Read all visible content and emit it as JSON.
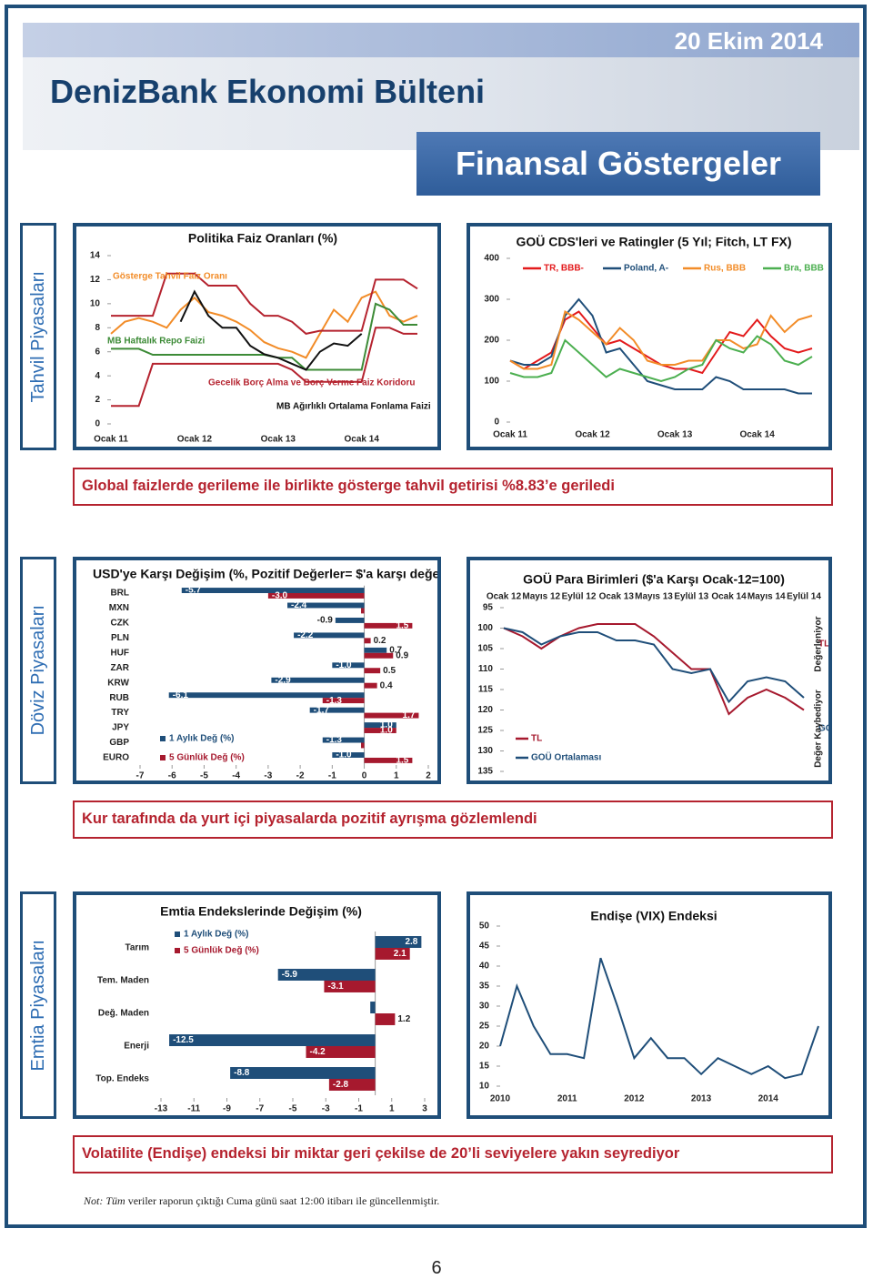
{
  "header": {
    "date": "20 Ekim 2014",
    "title": "DenizBank Ekonomi Bülteni",
    "subtitle": "Finansal Göstergeler"
  },
  "sections": [
    {
      "label": "Tahvil Piyasaları",
      "caption": "Global faizlerde gerileme ile birlikte gösterge tahvil getirisi %8.83’e geriledi"
    },
    {
      "label": "Döviz Piyasaları",
      "caption": "Kur tarafında da yurt içi piyasalarda pozitif ayrışma gözlemlendi"
    },
    {
      "label": "Emtia Piyasaları",
      "caption": "Volatilite (Endişe) endeksi bir miktar geri çekilse de 20’li seviyelere yakın seyrediyor"
    }
  ],
  "note_lead": "Not: Tüm",
  "note": "veriler raporun çıktığı Cuma günü saat 12:00 itibarı ile güncellenmiştir.",
  "page_number": "6",
  "chart_data": [
    {
      "type": "line",
      "title": "Politika Faiz Oranları (%)",
      "categories": [
        "Ocak 11",
        null,
        null,
        null,
        null,
        null,
        "Ocak 12",
        null,
        null,
        null,
        null,
        null,
        "Ocak 13",
        null,
        null,
        null,
        null,
        null,
        "Ocak 14",
        null,
        null,
        null,
        null
      ],
      "ylim": [
        0,
        14
      ],
      "yticks": [
        0,
        2,
        4,
        6,
        8,
        10,
        12,
        14
      ],
      "series": [
        {
          "name": "Gösterge Tahvil Faiz Oranı",
          "color": "#f28c28",
          "values": [
            7.5,
            8.5,
            8.8,
            8.5,
            8.0,
            9.5,
            10.5,
            9.3,
            9.0,
            8.5,
            7.8,
            6.8,
            6.3,
            6.0,
            5.5,
            7.5,
            9.5,
            8.5,
            10.5,
            11.0,
            9.0,
            8.5,
            9.0
          ]
        },
        {
          "name": "MB Haftalık Repo Faizi",
          "color": "#3d8b37",
          "values": [
            6.25,
            6.25,
            6.25,
            5.75,
            5.75,
            5.75,
            5.75,
            5.75,
            5.75,
            5.75,
            5.75,
            5.75,
            5.5,
            5.5,
            4.5,
            4.5,
            4.5,
            4.5,
            4.5,
            10,
            9.5,
            8.25,
            8.25
          ]
        },
        {
          "name": "Gecelik Borç Alma ve Borç Verme Faiz Koridoru",
          "color": "#b5232f",
          "values": [
            9,
            9,
            9,
            9,
            12.5,
            12.5,
            12.5,
            11.5,
            11.5,
            11.5,
            10,
            9,
            9,
            8.5,
            7.5,
            7.75,
            7.75,
            7.75,
            7.75,
            12,
            12,
            12,
            11.25
          ],
          "lower": [
            1.5,
            1.5,
            1.5,
            5,
            5,
            5,
            5,
            5,
            5,
            5,
            5,
            5,
            5,
            4.5,
            3.5,
            3.5,
            3.5,
            3.5,
            3.5,
            8,
            8,
            7.5,
            7.5
          ]
        },
        {
          "name": "MB Ağırlıklı Ortalama Fonlama Faizi",
          "color": "#111111",
          "values": [
            null,
            null,
            null,
            null,
            null,
            8.5,
            11,
            9,
            8,
            8,
            6.5,
            5.8,
            5.5,
            5.0,
            4.5,
            6.0,
            6.7,
            6.5,
            7.5,
            null,
            null,
            null,
            null
          ]
        }
      ]
    },
    {
      "type": "line",
      "title": "GOÜ CDS'leri ve Ratingler (5 Yıl; Fitch, LT FX)",
      "categories": [
        "Ocak 11",
        null,
        null,
        null,
        null,
        null,
        "Ocak 12",
        null,
        null,
        null,
        null,
        null,
        "Ocak 13",
        null,
        null,
        null,
        null,
        null,
        "Ocak 14",
        null,
        null,
        null,
        null
      ],
      "ylim": [
        0,
        400
      ],
      "yticks": [
        0,
        100,
        200,
        300,
        400
      ],
      "legend": "top",
      "series": [
        {
          "name": "TR, BBB-",
          "color": "#e31a1c",
          "values": [
            150,
            130,
            150,
            170,
            250,
            270,
            230,
            190,
            200,
            180,
            160,
            140,
            130,
            130,
            120,
            170,
            220,
            210,
            250,
            210,
            180,
            170,
            180
          ]
        },
        {
          "name": "Poland, A-",
          "color": "#1f4e79",
          "values": [
            150,
            140,
            140,
            160,
            260,
            300,
            260,
            170,
            180,
            140,
            100,
            90,
            80,
            80,
            80,
            110,
            100,
            80,
            80,
            80,
            80,
            70,
            70
          ]
        },
        {
          "name": "Rus, BBB",
          "color": "#f28c28",
          "values": [
            150,
            130,
            130,
            140,
            270,
            250,
            220,
            190,
            230,
            200,
            150,
            140,
            140,
            150,
            150,
            200,
            200,
            180,
            190,
            260,
            220,
            250,
            260
          ]
        },
        {
          "name": "Bra, BBB",
          "color": "#4caf50",
          "values": [
            120,
            110,
            110,
            120,
            200,
            170,
            140,
            110,
            130,
            120,
            110,
            100,
            110,
            130,
            140,
            200,
            180,
            170,
            210,
            190,
            150,
            140,
            160
          ]
        }
      ]
    },
    {
      "type": "hbar",
      "title": "USD'ye Karşı Değişim (%, Pozitif Değerler= $'a karşı değerleniyor)",
      "categories": [
        "BRL",
        "MXN",
        "CZK",
        "PLN",
        "HUF",
        "ZAR",
        "KRW",
        "RUB",
        "TRY",
        "JPY",
        "GBP",
        "EURO"
      ],
      "xlim": [
        -7,
        2
      ],
      "xticks": [
        -7,
        -6,
        -5,
        -4,
        -3,
        -2,
        -1,
        0,
        1,
        2
      ],
      "legend": "bottom-left",
      "series": [
        {
          "name": "1 Aylık Değ (%)",
          "color": "#1f4e79",
          "values": [
            -5.7,
            -2.4,
            -0.9,
            -2.2,
            0.7,
            -1.0,
            -2.9,
            -6.1,
            -1.7,
            1.0,
            -1.3,
            -1.0
          ],
          "value_labels": [
            "-5.7",
            "-2.4",
            "-0.9",
            "-2.2",
            "0.7",
            "-1.0",
            "-2.9",
            "-6.1",
            "-1.7",
            "1.0",
            "-1.3",
            "-1.0"
          ]
        },
        {
          "name": "5 Günlük Değ (%)",
          "color": "#a6192e",
          "values": [
            -3.0,
            -0.1,
            1.5,
            0.2,
            0.9,
            0.5,
            0.4,
            -1.3,
            1.7,
            1.0,
            -0.1,
            1.5
          ],
          "value_labels": [
            "-3.0",
            null,
            "1.5",
            "0.2",
            "0.9",
            "0.5",
            "0.4",
            "-1.3",
            "1.7",
            "1.0",
            null,
            "1.5"
          ]
        }
      ]
    },
    {
      "type": "line",
      "title": "GOÜ Para Birimleri ($'a Karşı Ocak-12=100)",
      "categories": [
        "Ocak 12",
        null,
        "Mayıs 12",
        null,
        "Eylül 12",
        null,
        "Ocak 13",
        null,
        "Mayıs 13",
        null,
        "Eylül 13",
        null,
        "Ocak 14",
        null,
        "Mayıs 14",
        null,
        "Eylül 14"
      ],
      "ylim": [
        95,
        135
      ],
      "yticks": [
        95,
        100,
        105,
        110,
        115,
        120,
        125,
        130,
        135
      ],
      "y_inverted": true,
      "legend": "bottom-left",
      "annotations": [
        "Değerleniyor",
        "Değer Kaybediyor"
      ],
      "series": [
        {
          "name": "TL",
          "color": "#a6192e",
          "values": [
            100,
            102,
            105,
            102,
            100,
            99,
            99,
            99,
            102,
            106,
            110,
            110,
            121,
            117,
            115,
            117,
            120
          ]
        },
        {
          "name": "GOÜ Ortalaması",
          "color": "#1f4e79",
          "values": [
            100,
            101,
            104,
            102,
            101,
            101,
            103,
            103,
            104,
            110,
            111,
            110,
            118,
            113,
            112,
            113,
            117
          ]
        }
      ]
    },
    {
      "type": "hbar",
      "title": "Emtia Endekslerinde Değişim (%)",
      "categories": [
        "Tarım",
        "Tem. Maden",
        "Değ. Maden",
        "Enerji",
        "Top. Endeks"
      ],
      "xlim": [
        -13,
        3
      ],
      "xticks": [
        -13,
        -11,
        -9,
        -7,
        -5,
        -3,
        -1,
        1,
        3
      ],
      "legend": "top-left",
      "series": [
        {
          "name": "1 Aylık Değ (%)",
          "color": "#1f4e79",
          "values": [
            2.8,
            -5.9,
            -0.3,
            -12.5,
            -8.8
          ],
          "value_labels": [
            "2.8",
            "-5.9",
            null,
            "-12.5",
            "-8.8"
          ]
        },
        {
          "name": "5 Günlük Değ (%)",
          "color": "#a6192e",
          "values": [
            2.1,
            -3.1,
            1.2,
            -4.2,
            -2.8
          ],
          "value_labels": [
            "2.1",
            "-3.1",
            "1.2",
            "-4.2",
            "-2.8"
          ]
        }
      ]
    },
    {
      "type": "line",
      "title": "Endişe (VIX) Endeksi",
      "categories": [
        "2010",
        null,
        null,
        null,
        "2011",
        null,
        null,
        null,
        "2012",
        null,
        null,
        null,
        "2013",
        null,
        null,
        null,
        "2014",
        null,
        null,
        null
      ],
      "ylim": [
        10,
        50
      ],
      "yticks": [
        10,
        15,
        20,
        25,
        30,
        35,
        40,
        45,
        50
      ],
      "color": "#1f4e79",
      "values": [
        20,
        35,
        25,
        18,
        18,
        17,
        42,
        30,
        17,
        22,
        17,
        17,
        13,
        17,
        15,
        13,
        15,
        12,
        13,
        25
      ]
    }
  ]
}
